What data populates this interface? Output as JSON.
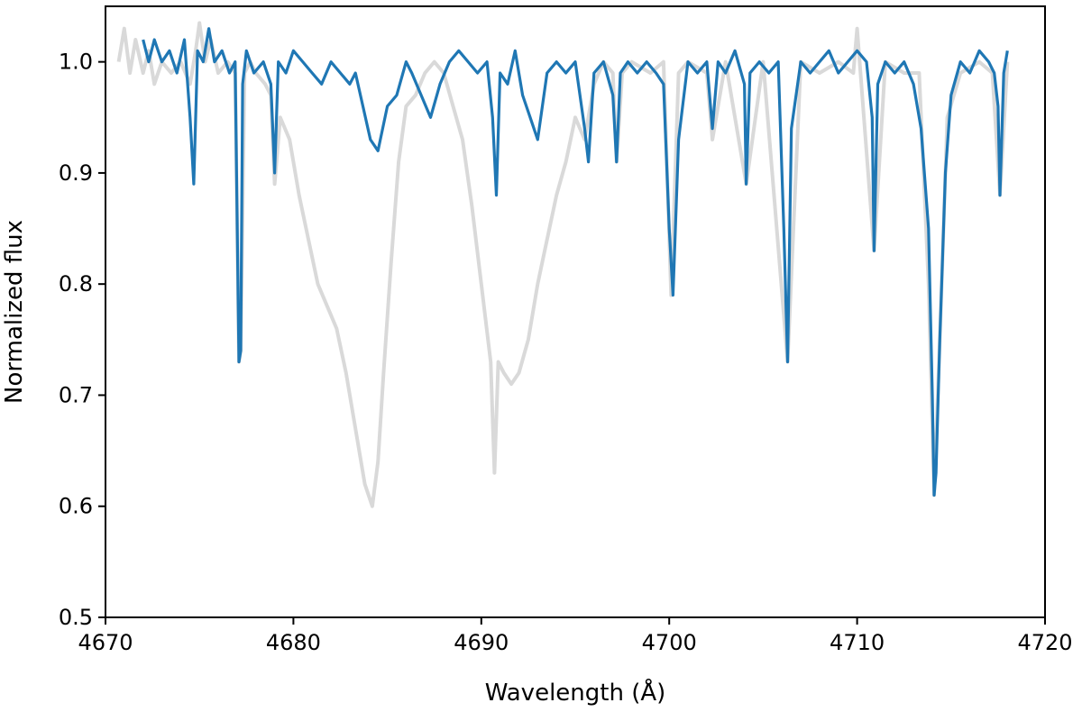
{
  "chart_data": {
    "type": "line",
    "title": "",
    "xlabel": "Wavelength (Å)",
    "ylabel": "Normalized flux",
    "xlim": [
      4670,
      4720
    ],
    "ylim": [
      0.5,
      1.05
    ],
    "xticks": [
      4670,
      4680,
      4690,
      4700,
      4710,
      4720
    ],
    "xtick_labels": [
      "4670",
      "4680",
      "4690",
      "4700",
      "4710",
      "4720"
    ],
    "yticks": [
      0.5,
      0.6,
      0.7,
      0.8,
      0.9,
      1.0
    ],
    "ytick_labels": [
      "0.5",
      "0.6",
      "0.7",
      "0.8",
      "0.9",
      "1.0"
    ],
    "grid": false,
    "legend": "none",
    "series": [
      {
        "color": "#d9d9d9",
        "x": [
          4670.7,
          4671.0,
          4671.3,
          4671.6,
          4672.0,
          4672.3,
          4672.6,
          4673.0,
          4673.5,
          4674.0,
          4674.5,
          4674.8,
          4675.0,
          4675.3,
          4675.6,
          4676.0,
          4676.5,
          4676.9,
          4677.1,
          4677.2,
          4677.4,
          4677.7,
          4678.0,
          4678.5,
          4678.8,
          4679.0,
          4679.3,
          4679.8,
          4680.3,
          4680.8,
          4681.3,
          4681.8,
          4682.3,
          4682.8,
          4683.3,
          4683.8,
          4684.2,
          4684.5,
          4684.8,
          4685.2,
          4685.6,
          4686.0,
          4686.5,
          4687.0,
          4687.5,
          4688.0,
          4688.5,
          4689.0,
          4689.5,
          4690.0,
          4690.5,
          4690.7,
          4690.9,
          4691.2,
          4691.6,
          4692.0,
          4692.5,
          4693.0,
          4693.5,
          4694.0,
          4694.5,
          4695.0,
          4695.5,
          4696.0,
          4696.5,
          4697.0,
          4697.2,
          4697.5,
          4698.0,
          4699.0,
          4699.7,
          4700.1,
          4700.5,
          4701.0,
          4702.0,
          4702.3,
          4703.0,
          4704.1,
          4705.0,
          4706.3,
          4707.0,
          4708.0,
          4709.0,
          4709.8,
          4710.0,
          4710.9,
          4711.5,
          4712.5,
          4713.3,
          4713.8,
          4714.1,
          4714.4,
          4714.8,
          4715.5,
          4716.5,
          4717.2,
          4717.6,
          4718.0
        ],
        "y": [
          1.0,
          1.03,
          0.99,
          1.02,
          0.99,
          1.01,
          0.98,
          1.0,
          0.99,
          1.0,
          0.98,
          1.01,
          1.035,
          1.0,
          1.02,
          0.99,
          1.0,
          0.99,
          0.73,
          0.74,
          0.99,
          1.0,
          0.99,
          0.98,
          0.97,
          0.89,
          0.95,
          0.93,
          0.88,
          0.84,
          0.8,
          0.78,
          0.76,
          0.72,
          0.67,
          0.62,
          0.6,
          0.64,
          0.72,
          0.82,
          0.91,
          0.96,
          0.97,
          0.99,
          1.0,
          0.99,
          0.96,
          0.93,
          0.87,
          0.8,
          0.73,
          0.63,
          0.73,
          0.72,
          0.71,
          0.72,
          0.75,
          0.8,
          0.84,
          0.88,
          0.91,
          0.95,
          0.93,
          0.98,
          1.0,
          0.99,
          0.91,
          0.99,
          1.0,
          0.99,
          1.0,
          0.79,
          0.99,
          1.0,
          0.99,
          0.93,
          1.0,
          0.89,
          1.0,
          0.73,
          1.0,
          0.99,
          1.0,
          0.99,
          1.03,
          0.83,
          1.0,
          0.99,
          0.99,
          0.8,
          0.61,
          0.75,
          0.95,
          0.99,
          1.0,
          0.99,
          0.88,
          1.0
        ]
      },
      {
        "color": "#1f77b4",
        "x": [
          4672.0,
          4672.3,
          4672.6,
          4673.0,
          4673.4,
          4673.8,
          4674.2,
          4674.5,
          4674.7,
          4674.9,
          4675.2,
          4675.5,
          4675.8,
          4676.2,
          4676.6,
          4676.9,
          4677.1,
          4677.2,
          4677.3,
          4677.5,
          4677.9,
          4678.4,
          4678.8,
          4679.0,
          4679.2,
          4679.6,
          4680.0,
          4680.5,
          4681.0,
          4681.5,
          4682.0,
          4682.5,
          4683.0,
          4683.3,
          4683.7,
          4684.1,
          4684.5,
          4685.0,
          4685.5,
          4686.0,
          4686.3,
          4686.8,
          4687.3,
          4687.8,
          4688.3,
          4688.8,
          4689.3,
          4689.8,
          4690.3,
          4690.6,
          4690.8,
          4691.0,
          4691.4,
          4691.8,
          4692.2,
          4692.6,
          4693.0,
          4693.5,
          4694.0,
          4694.5,
          4695.0,
          4695.5,
          4695.7,
          4696.0,
          4696.5,
          4697.0,
          4697.2,
          4697.4,
          4697.8,
          4698.3,
          4698.8,
          4699.3,
          4699.7,
          4700.0,
          4700.2,
          4700.5,
          4701.0,
          4701.5,
          4702.0,
          4702.3,
          4702.6,
          4703.0,
          4703.5,
          4704.0,
          4704.1,
          4704.3,
          4704.8,
          4705.3,
          4705.8,
          4706.1,
          4706.3,
          4706.5,
          4707.0,
          4707.5,
          4708.0,
          4708.5,
          4709.0,
          4709.5,
          4710.0,
          4710.5,
          4710.8,
          4710.9,
          4711.1,
          4711.5,
          4712.0,
          4712.5,
          4713.0,
          4713.4,
          4713.8,
          4714.0,
          4714.1,
          4714.2,
          4714.4,
          4714.7,
          4715.0,
          4715.5,
          4716.0,
          4716.5,
          4717.0,
          4717.3,
          4717.5,
          4717.6,
          4717.8,
          4718.0
        ],
        "y": [
          1.02,
          1.0,
          1.02,
          1.0,
          1.01,
          0.99,
          1.02,
          0.95,
          0.89,
          1.01,
          1.0,
          1.03,
          1.0,
          1.01,
          0.99,
          1.0,
          0.73,
          0.74,
          0.98,
          1.01,
          0.99,
          1.0,
          0.98,
          0.9,
          1.0,
          0.99,
          1.01,
          1.0,
          0.99,
          0.98,
          1.0,
          0.99,
          0.98,
          0.99,
          0.96,
          0.93,
          0.92,
          0.96,
          0.97,
          1.0,
          0.99,
          0.97,
          0.95,
          0.98,
          1.0,
          1.01,
          1.0,
          0.99,
          1.0,
          0.95,
          0.88,
          0.99,
          0.98,
          1.01,
          0.97,
          0.95,
          0.93,
          0.99,
          1.0,
          0.99,
          1.0,
          0.94,
          0.91,
          0.99,
          1.0,
          0.97,
          0.91,
          0.99,
          1.0,
          0.99,
          1.0,
          0.99,
          0.98,
          0.85,
          0.79,
          0.93,
          1.0,
          0.99,
          1.0,
          0.94,
          1.0,
          0.99,
          1.01,
          0.98,
          0.89,
          0.99,
          1.0,
          0.99,
          1.0,
          0.85,
          0.73,
          0.94,
          1.0,
          0.99,
          1.0,
          1.01,
          0.99,
          1.0,
          1.01,
          1.0,
          0.95,
          0.83,
          0.98,
          1.0,
          0.99,
          1.0,
          0.98,
          0.94,
          0.85,
          0.7,
          0.61,
          0.63,
          0.75,
          0.9,
          0.97,
          1.0,
          0.99,
          1.01,
          1.0,
          0.99,
          0.96,
          0.88,
          0.99,
          1.01
        ]
      }
    ]
  }
}
